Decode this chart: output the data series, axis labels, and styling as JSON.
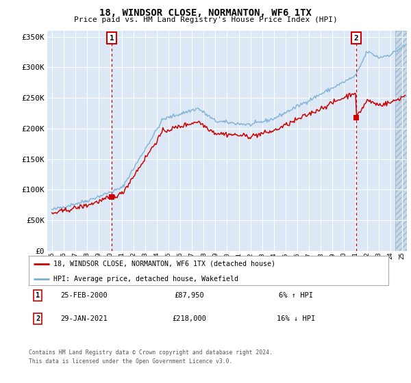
{
  "title": "18, WINDSOR CLOSE, NORMANTON, WF6 1TX",
  "subtitle": "Price paid vs. HM Land Registry's House Price Index (HPI)",
  "legend_line1": "18, WINDSOR CLOSE, NORMANTON, WF6 1TX (detached house)",
  "legend_line2": "HPI: Average price, detached house, Wakefield",
  "annotation1_label": "1",
  "annotation1_date": "25-FEB-2000",
  "annotation1_price": "£87,950",
  "annotation1_hpi": "6% ↑ HPI",
  "annotation2_label": "2",
  "annotation2_date": "29-JAN-2021",
  "annotation2_price": "£218,000",
  "annotation2_hpi": "16% ↓ HPI",
  "footer_line1": "Contains HM Land Registry data © Crown copyright and database right 2024.",
  "footer_line2": "This data is licensed under the Open Government Licence v3.0.",
  "hpi_color": "#7bafd4",
  "hpi_fill_color": "#c5d9ee",
  "sale_color": "#cc0000",
  "bg_plot": "#dce8f5",
  "ylim": [
    0,
    360000
  ],
  "yticks": [
    0,
    50000,
    100000,
    150000,
    200000,
    250000,
    300000,
    350000
  ],
  "sale1_x": 2000.12,
  "sale1_y": 87950,
  "sale2_x": 2021.07,
  "sale2_y": 218000,
  "xmin": 1994.6,
  "xmax": 2025.4
}
